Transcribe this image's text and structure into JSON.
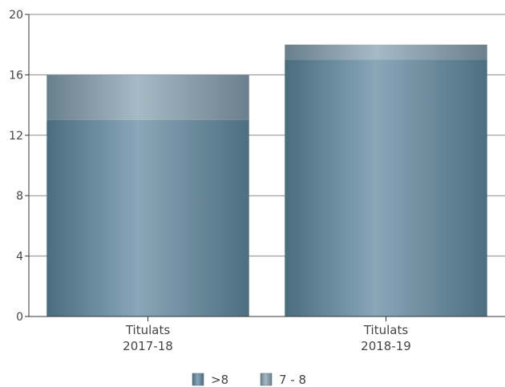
{
  "chart_data": {
    "type": "bar",
    "stacked": true,
    "categories": [
      [
        "Titulats",
        "2017-18"
      ],
      [
        "Titulats",
        "2018-19"
      ]
    ],
    "series": [
      {
        "name": ">8",
        "values": [
          13,
          17
        ],
        "color": "#557b8d"
      },
      {
        "name": "7 - 8",
        "values": [
          3,
          1
        ],
        "color": "#7c95a2"
      }
    ],
    "ylim": [
      0,
      20
    ],
    "yticks": [
      0,
      4,
      8,
      12,
      16,
      20
    ],
    "grid": true,
    "legend": "bottom-center"
  }
}
